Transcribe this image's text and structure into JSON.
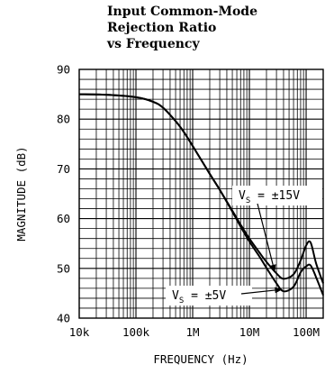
{
  "chart_data": {
    "type": "line",
    "title_lines": [
      "Input Common-Mode",
      "Rejection Ratio",
      "vs Frequency"
    ],
    "xlabel": "FREQUENCY (Hz)",
    "ylabel": "MAGNITUDE (dB)",
    "x_scale": "log",
    "xlim": [
      10000,
      200000000
    ],
    "ylim": [
      40,
      90
    ],
    "x_ticks": [
      {
        "value": 10000,
        "label": "10k"
      },
      {
        "value": 100000,
        "label": "100k"
      },
      {
        "value": 1000000,
        "label": "1M"
      },
      {
        "value": 10000000,
        "label": "10M"
      },
      {
        "value": 100000000,
        "label": "100M"
      }
    ],
    "y_ticks": [
      {
        "value": 40,
        "label": "40"
      },
      {
        "value": 50,
        "label": "50"
      },
      {
        "value": 60,
        "label": "60"
      },
      {
        "value": 70,
        "label": "70"
      },
      {
        "value": 80,
        "label": "80"
      },
      {
        "value": 90,
        "label": "90"
      }
    ],
    "grid": true,
    "series": [
      {
        "name": "VS = ±15V",
        "x": [
          10000,
          30000,
          100000,
          200000,
          300000,
          500000,
          700000,
          1000000,
          2000000,
          3000000,
          5000000,
          7000000,
          10000000,
          15000000,
          20000000,
          30000000,
          40000000,
          60000000,
          80000000,
          100000000,
          120000000,
          150000000,
          200000000
        ],
        "y": [
          85,
          84.9,
          84.4,
          83.5,
          82.3,
          79.6,
          77.4,
          74.6,
          69,
          65.8,
          61.6,
          58.8,
          56,
          53.2,
          51.3,
          49,
          47.9,
          48.8,
          51.6,
          54.6,
          55.2,
          51,
          47
        ]
      },
      {
        "name": "VS = ±5V",
        "x": [
          10000,
          30000,
          100000,
          200000,
          300000,
          500000,
          700000,
          1000000,
          2000000,
          3000000,
          5000000,
          7000000,
          10000000,
          15000000,
          20000000,
          30000000,
          40000000,
          60000000,
          80000000,
          100000000,
          120000000,
          150000000,
          200000000
        ],
        "y": [
          85,
          84.9,
          84.4,
          83.5,
          82.3,
          79.6,
          77.4,
          74.6,
          69,
          65.8,
          61.4,
          58.4,
          55.4,
          52.4,
          50.1,
          47,
          45.4,
          46.3,
          49.2,
          50.4,
          50.6,
          48.2,
          44.6
        ]
      }
    ],
    "annotations": [
      {
        "main": "V",
        "sub": "S",
        "rest": " = ±15V"
      },
      {
        "main": "V",
        "sub": "S",
        "rest": " = ±5V"
      }
    ]
  }
}
